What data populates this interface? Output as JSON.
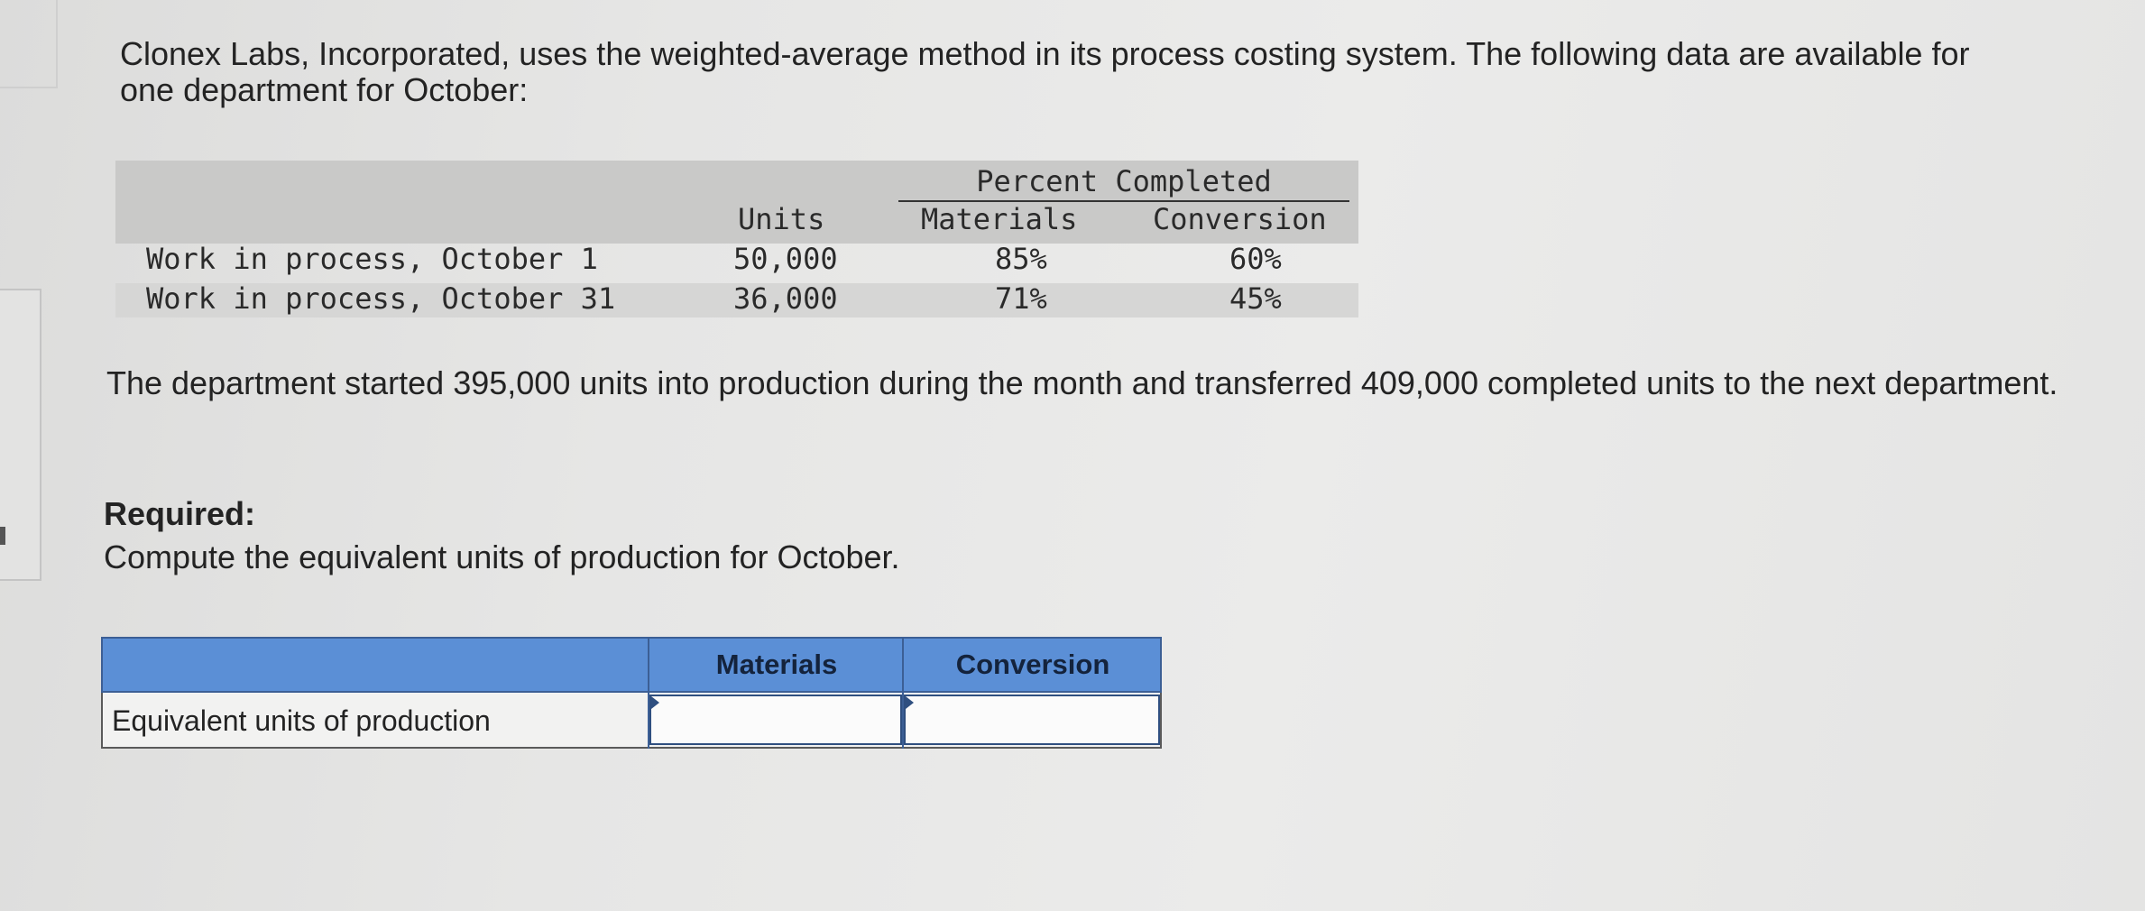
{
  "intro": {
    "text": "Clonex Labs, Incorporated, uses the weighted-average method in its process costing system. The following data are available for one department for October:"
  },
  "data_table": {
    "group_header": "Percent Completed",
    "columns": {
      "units": "Units",
      "materials": "Materials",
      "conversion": "Conversion"
    },
    "rows": [
      {
        "label": "Work in process, October 1",
        "units": "50,000",
        "materials": "85%",
        "conversion": "60%"
      },
      {
        "label": "Work in process, October 31",
        "units": "36,000",
        "materials": "71%",
        "conversion": "45%"
      }
    ]
  },
  "paragraph": {
    "text": "The department started 395,000 units into production during the month and transferred 409,000 completed units to the next department."
  },
  "required": {
    "heading": "Required:",
    "text": "Compute the equivalent units of production for October."
  },
  "answer_table": {
    "columns": [
      "Materials",
      "Conversion"
    ],
    "row_label": "Equivalent units of production",
    "materials_value": "",
    "conversion_value": ""
  }
}
